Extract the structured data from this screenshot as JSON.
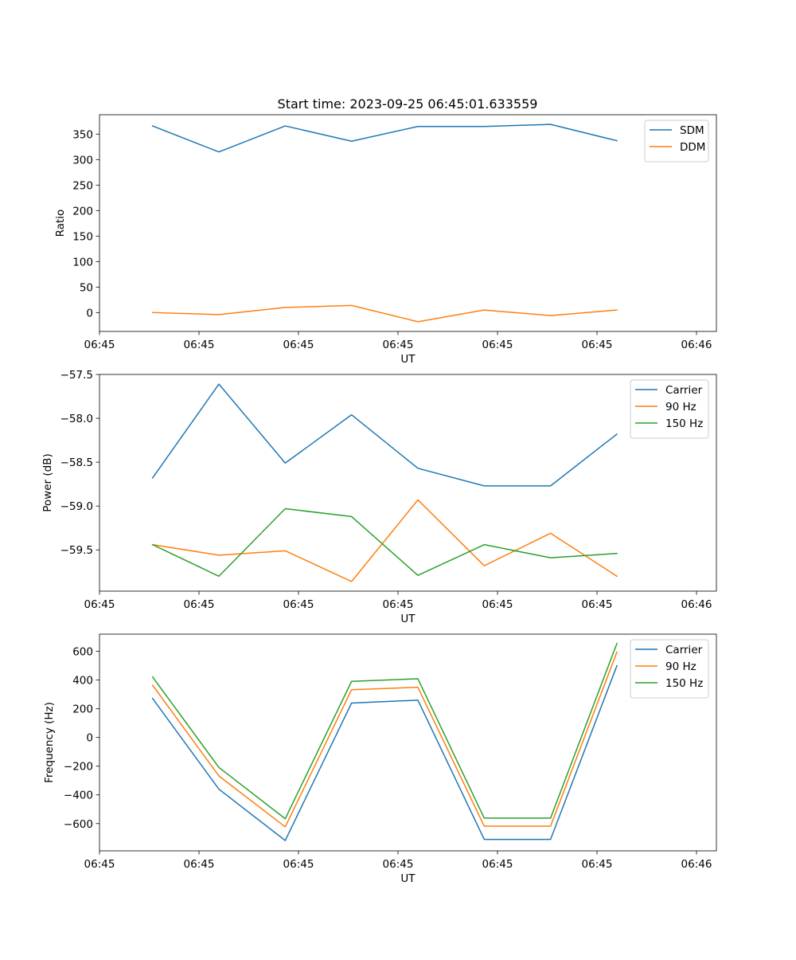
{
  "figure": {
    "title": "Start time: 2023-09-25 06:45:01.633559"
  },
  "colors": {
    "blue": "#1f77b4",
    "orange": "#ff7f0e",
    "green": "#2ca02c"
  },
  "chart_data": [
    {
      "type": "line",
      "title": "Start time: 2023-09-25 06:45:01.633559",
      "xlabel": "UT",
      "ylabel": "Ratio",
      "x": [
        1,
        2,
        3,
        4,
        5,
        6,
        7,
        8
      ],
      "xlim": [
        0.2,
        9.5
      ],
      "x_ticks": [
        0.2,
        1.7,
        3.2,
        4.7,
        6.2,
        7.7,
        9.2
      ],
      "x_tick_labels": [
        "06:45",
        "06:45",
        "06:45",
        "06:45",
        "06:45",
        "06:45",
        "06:46"
      ],
      "ylim": [
        -37,
        388
      ],
      "y_ticks": [
        0,
        50,
        100,
        150,
        200,
        250,
        300,
        350
      ],
      "y_tick_labels": [
        "0",
        "50",
        "100",
        "150",
        "200",
        "250",
        "300",
        "350"
      ],
      "legend_position": "top-right",
      "series": [
        {
          "name": "SDM",
          "color": "#1f77b4",
          "values": [
            366,
            315,
            366,
            336,
            365,
            365,
            369,
            337
          ]
        },
        {
          "name": "DDM",
          "color": "#ff7f0e",
          "values": [
            0,
            -4,
            10,
            14,
            -18,
            5,
            -6,
            5
          ]
        }
      ]
    },
    {
      "type": "line",
      "xlabel": "UT",
      "ylabel": "Power (dB)",
      "x": [
        1,
        2,
        3,
        4,
        5,
        6,
        7,
        8
      ],
      "xlim": [
        0.2,
        9.5
      ],
      "x_ticks": [
        0.2,
        1.7,
        3.2,
        4.7,
        6.2,
        7.7,
        9.2
      ],
      "x_tick_labels": [
        "06:45",
        "06:45",
        "06:45",
        "06:45",
        "06:45",
        "06:45",
        "06:46"
      ],
      "ylim": [
        -59.97,
        -57.5
      ],
      "y_ticks": [
        -59.5,
        -59.0,
        -58.5,
        -58.0,
        -57.5
      ],
      "y_tick_labels": [
        "−59.5",
        "−59.0",
        "−58.5",
        "−58.0",
        "−57.5"
      ],
      "legend_position": "top-right",
      "series": [
        {
          "name": "Carrier",
          "color": "#1f77b4",
          "values": [
            -58.68,
            -57.61,
            -58.51,
            -57.96,
            -58.57,
            -58.77,
            -58.77,
            -58.18
          ]
        },
        {
          "name": "90 Hz",
          "color": "#ff7f0e",
          "values": [
            -59.44,
            -59.56,
            -59.51,
            -59.86,
            -58.93,
            -59.68,
            -59.31,
            -59.8
          ]
        },
        {
          "name": "150 Hz",
          "color": "#2ca02c",
          "values": [
            -59.44,
            -59.8,
            -59.03,
            -59.12,
            -59.79,
            -59.44,
            -59.59,
            -59.54
          ]
        }
      ]
    },
    {
      "type": "line",
      "xlabel": "UT",
      "ylabel": "Frequency (Hz)",
      "x": [
        1,
        2,
        3,
        4,
        5,
        6,
        7,
        8
      ],
      "xlim": [
        0.2,
        9.5
      ],
      "x_ticks": [
        0.2,
        1.7,
        3.2,
        4.7,
        6.2,
        7.7,
        9.2
      ],
      "x_tick_labels": [
        "06:45",
        "06:45",
        "06:45",
        "06:45",
        "06:45",
        "06:45",
        "06:46"
      ],
      "ylim": [
        -790,
        720
      ],
      "y_ticks": [
        -600,
        -400,
        -200,
        0,
        200,
        400,
        600
      ],
      "y_tick_labels": [
        "−600",
        "−400",
        "−200",
        "0",
        "200",
        "400",
        "600"
      ],
      "legend_position": "top-right",
      "series": [
        {
          "name": "Carrier",
          "color": "#1f77b4",
          "values": [
            272,
            -360,
            -718,
            240,
            260,
            -710,
            -710,
            500
          ]
        },
        {
          "name": "90 Hz",
          "color": "#ff7f0e",
          "values": [
            364,
            -268,
            -623,
            333,
            350,
            -618,
            -618,
            595
          ]
        },
        {
          "name": "150 Hz",
          "color": "#2ca02c",
          "values": [
            422,
            -209,
            -566,
            391,
            409,
            -562,
            -562,
            655
          ]
        }
      ]
    }
  ]
}
